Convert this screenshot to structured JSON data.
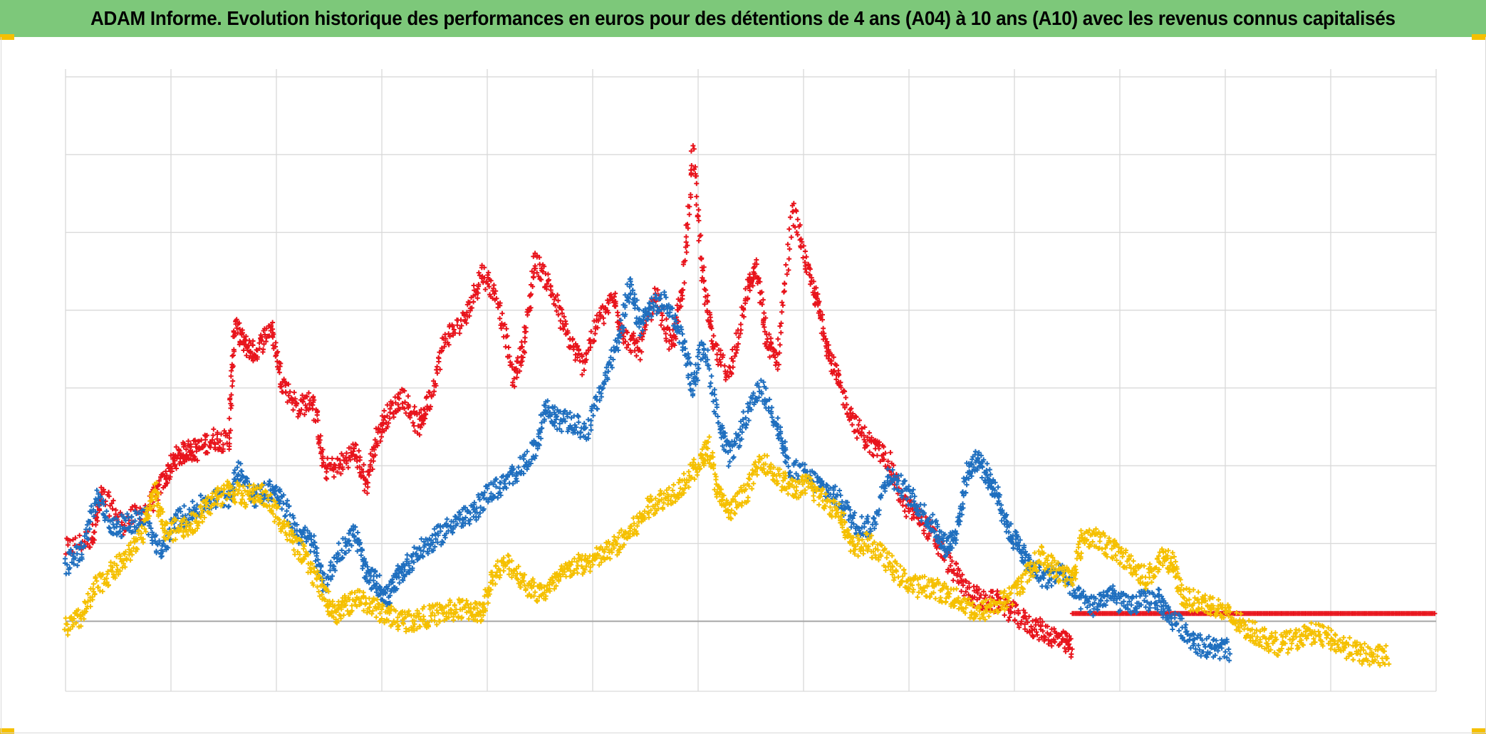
{
  "title": "ADAM Informe. Evolution historique des performances en euros pour des détentions de 4 ans (A04) à 10 ans (A10) avec les revenus connus capitalisés",
  "colors": {
    "title_bar": "#7dc87a",
    "grid": "#d9d9d9",
    "zero_line": "#a6a6a6",
    "series_red": "#e8141c",
    "series_blue": "#1f6fbf",
    "series_yellow": "#f5c000"
  },
  "chart_data": {
    "type": "scatter",
    "marker": "plus",
    "grid": true,
    "legend": "none",
    "xlim": [
      0,
      13
    ],
    "ylim": [
      -0.9,
      7.1
    ],
    "x_gridlines": [
      0,
      1,
      2,
      3,
      4,
      5,
      6,
      7,
      8,
      9,
      10,
      11,
      12,
      13
    ],
    "y_gridlines": [
      -0.9,
      0,
      1,
      2,
      3,
      4,
      5,
      6,
      7
    ],
    "series": [
      {
        "color": "#e8141c",
        "points": [
          [
            0,
            0.92
          ],
          [
            0.25,
            1.08
          ],
          [
            0.35,
            1.62
          ],
          [
            0.55,
            1.25
          ],
          [
            0.8,
            1.5
          ],
          [
            0.95,
            1.85
          ],
          [
            1.05,
            2.1
          ],
          [
            1.15,
            2.2
          ],
          [
            1.25,
            2.2
          ],
          [
            1.4,
            2.35
          ],
          [
            1.55,
            2.3
          ],
          [
            1.6,
            3.8
          ],
          [
            1.7,
            3.55
          ],
          [
            1.8,
            3.45
          ],
          [
            1.95,
            3.8
          ],
          [
            2.05,
            3.1
          ],
          [
            2.2,
            2.75
          ],
          [
            2.35,
            2.85
          ],
          [
            2.45,
            1.95
          ],
          [
            2.6,
            2.0
          ],
          [
            2.75,
            2.2
          ],
          [
            2.85,
            1.75
          ],
          [
            2.95,
            2.35
          ],
          [
            3.05,
            2.65
          ],
          [
            3.2,
            2.9
          ],
          [
            3.35,
            2.5
          ],
          [
            3.45,
            2.85
          ],
          [
            3.6,
            3.65
          ],
          [
            3.8,
            3.9
          ],
          [
            3.95,
            4.5
          ],
          [
            4.1,
            4.15
          ],
          [
            4.25,
            3.1
          ],
          [
            4.35,
            3.55
          ],
          [
            4.45,
            4.65
          ],
          [
            4.6,
            4.3
          ],
          [
            4.75,
            3.7
          ],
          [
            4.9,
            3.3
          ],
          [
            5.05,
            3.85
          ],
          [
            5.2,
            4.15
          ],
          [
            5.3,
            3.65
          ],
          [
            5.45,
            3.5
          ],
          [
            5.6,
            4.2
          ],
          [
            5.75,
            3.5
          ],
          [
            5.85,
            4.25
          ],
          [
            5.95,
            6.05
          ],
          [
            6.05,
            4.35
          ],
          [
            6.15,
            3.5
          ],
          [
            6.3,
            3.15
          ],
          [
            6.45,
            4.2
          ],
          [
            6.55,
            4.55
          ],
          [
            6.65,
            3.6
          ],
          [
            6.75,
            3.35
          ],
          [
            6.9,
            5.3
          ],
          [
            7.05,
            4.45
          ],
          [
            7.15,
            4.0
          ],
          [
            7.25,
            3.4
          ],
          [
            7.35,
            3.0
          ],
          [
            7.5,
            2.5
          ],
          [
            7.65,
            2.25
          ],
          [
            7.8,
            2.1
          ],
          [
            7.95,
            1.5
          ],
          [
            8.1,
            1.35
          ],
          [
            8.25,
            1.05
          ],
          [
            8.4,
            0.7
          ],
          [
            8.55,
            0.4
          ],
          [
            8.7,
            0.25
          ],
          [
            8.85,
            0.25
          ],
          [
            9.0,
            0.1
          ],
          [
            9.15,
            -0.05
          ],
          [
            9.3,
            -0.15
          ],
          [
            9.45,
            -0.25
          ],
          [
            9.55,
            -0.35
          ]
        ]
      },
      {
        "color": "#e8141c",
        "points": [
          [
            9.55,
            0.1
          ],
          [
            13.0,
            0.1
          ]
        ]
      },
      {
        "color": "#1f6fbf",
        "points": [
          [
            0,
            0.72
          ],
          [
            0.15,
            0.9
          ],
          [
            0.3,
            1.6
          ],
          [
            0.45,
            1.2
          ],
          [
            0.6,
            1.25
          ],
          [
            0.75,
            1.35
          ],
          [
            0.9,
            0.85
          ],
          [
            1.05,
            1.3
          ],
          [
            1.2,
            1.4
          ],
          [
            1.35,
            1.55
          ],
          [
            1.55,
            1.6
          ],
          [
            1.65,
            1.95
          ],
          [
            1.8,
            1.6
          ],
          [
            1.95,
            1.7
          ],
          [
            2.05,
            1.55
          ],
          [
            2.2,
            1.15
          ],
          [
            2.35,
            1.0
          ],
          [
            2.45,
            0.45
          ],
          [
            2.6,
            0.9
          ],
          [
            2.75,
            1.15
          ],
          [
            2.85,
            0.6
          ],
          [
            2.95,
            0.5
          ],
          [
            3.05,
            0.3
          ],
          [
            3.15,
            0.55
          ],
          [
            3.25,
            0.75
          ],
          [
            3.4,
            0.95
          ],
          [
            3.55,
            1.1
          ],
          [
            3.7,
            1.3
          ],
          [
            3.85,
            1.35
          ],
          [
            4.0,
            1.65
          ],
          [
            4.15,
            1.75
          ],
          [
            4.3,
            1.95
          ],
          [
            4.45,
            2.2
          ],
          [
            4.55,
            2.75
          ],
          [
            4.65,
            2.6
          ],
          [
            4.8,
            2.55
          ],
          [
            4.95,
            2.45
          ],
          [
            5.1,
            3.05
          ],
          [
            5.25,
            3.65
          ],
          [
            5.35,
            4.3
          ],
          [
            5.45,
            3.8
          ],
          [
            5.55,
            4.05
          ],
          [
            5.7,
            4.1
          ],
          [
            5.85,
            3.65
          ],
          [
            5.95,
            3.0
          ],
          [
            6.05,
            3.6
          ],
          [
            6.2,
            2.55
          ],
          [
            6.3,
            2.1
          ],
          [
            6.45,
            2.6
          ],
          [
            6.6,
            3.0
          ],
          [
            6.75,
            2.55
          ],
          [
            6.85,
            2.0
          ],
          [
            7.05,
            1.85
          ],
          [
            7.2,
            1.7
          ],
          [
            7.35,
            1.55
          ],
          [
            7.5,
            1.25
          ],
          [
            7.65,
            1.2
          ],
          [
            7.8,
            1.9
          ],
          [
            7.95,
            1.7
          ],
          [
            8.1,
            1.45
          ],
          [
            8.25,
            1.2
          ],
          [
            8.35,
            0.95
          ],
          [
            8.45,
            1.15
          ],
          [
            8.55,
            1.9
          ],
          [
            8.65,
            2.1
          ],
          [
            8.75,
            1.85
          ],
          [
            8.85,
            1.6
          ],
          [
            8.95,
            1.15
          ],
          [
            9.05,
            0.95
          ],
          [
            9.15,
            0.7
          ],
          [
            9.3,
            0.55
          ],
          [
            9.45,
            0.65
          ],
          [
            9.6,
            0.3
          ],
          [
            9.75,
            0.2
          ],
          [
            9.9,
            0.35
          ],
          [
            10.05,
            0.2
          ],
          [
            10.2,
            0.25
          ],
          [
            10.35,
            0.3
          ],
          [
            10.45,
            0.1
          ],
          [
            10.6,
            -0.1
          ],
          [
            10.75,
            -0.3
          ],
          [
            10.9,
            -0.35
          ],
          [
            11.05,
            -0.38
          ]
        ]
      },
      {
        "color": "#f5c000",
        "points": [
          [
            0,
            -0.1
          ],
          [
            0.15,
            0.05
          ],
          [
            0.3,
            0.45
          ],
          [
            0.45,
            0.65
          ],
          [
            0.6,
            0.85
          ],
          [
            0.75,
            1.2
          ],
          [
            0.85,
            1.7
          ],
          [
            0.95,
            1.15
          ],
          [
            1.1,
            1.2
          ],
          [
            1.25,
            1.3
          ],
          [
            1.4,
            1.55
          ],
          [
            1.55,
            1.7
          ],
          [
            1.7,
            1.6
          ],
          [
            1.85,
            1.65
          ],
          [
            2.0,
            1.4
          ],
          [
            2.15,
            1.05
          ],
          [
            2.3,
            0.75
          ],
          [
            2.45,
            0.35
          ],
          [
            2.55,
            0.1
          ],
          [
            2.65,
            0.2
          ],
          [
            2.8,
            0.3
          ],
          [
            2.95,
            0.15
          ],
          [
            3.1,
            0.05
          ],
          [
            3.25,
            0.0
          ],
          [
            3.4,
            0.05
          ],
          [
            3.55,
            0.1
          ],
          [
            3.7,
            0.15
          ],
          [
            3.85,
            0.15
          ],
          [
            3.95,
            0.1
          ],
          [
            4.05,
            0.6
          ],
          [
            4.2,
            0.75
          ],
          [
            4.35,
            0.5
          ],
          [
            4.5,
            0.35
          ],
          [
            4.65,
            0.5
          ],
          [
            4.8,
            0.7
          ],
          [
            4.95,
            0.75
          ],
          [
            5.1,
            0.85
          ],
          [
            5.25,
            1.0
          ],
          [
            5.4,
            1.2
          ],
          [
            5.55,
            1.5
          ],
          [
            5.7,
            1.6
          ],
          [
            5.85,
            1.75
          ],
          [
            6.0,
            2.0
          ],
          [
            6.1,
            2.25
          ],
          [
            6.2,
            1.6
          ],
          [
            6.3,
            1.4
          ],
          [
            6.45,
            1.65
          ],
          [
            6.6,
            2.1
          ],
          [
            6.75,
            1.85
          ],
          [
            6.9,
            1.7
          ],
          [
            7.05,
            1.75
          ],
          [
            7.2,
            1.55
          ],
          [
            7.35,
            1.4
          ],
          [
            7.45,
            0.95
          ],
          [
            7.6,
            1.0
          ],
          [
            7.75,
            0.85
          ],
          [
            7.9,
            0.6
          ],
          [
            8.05,
            0.45
          ],
          [
            8.2,
            0.45
          ],
          [
            8.35,
            0.35
          ],
          [
            8.5,
            0.25
          ],
          [
            8.65,
            0.1
          ],
          [
            8.8,
            0.2
          ],
          [
            8.95,
            0.3
          ],
          [
            9.1,
            0.55
          ],
          [
            9.25,
            0.85
          ],
          [
            9.4,
            0.65
          ],
          [
            9.55,
            0.55
          ],
          [
            9.65,
            1.1
          ],
          [
            9.8,
            1.05
          ],
          [
            9.95,
            0.9
          ],
          [
            10.1,
            0.75
          ],
          [
            10.25,
            0.55
          ],
          [
            10.4,
            0.8
          ],
          [
            10.5,
            0.75
          ],
          [
            10.6,
            0.3
          ],
          [
            10.75,
            0.25
          ],
          [
            10.9,
            0.2
          ],
          [
            11.05,
            0.05
          ],
          [
            11.2,
            -0.1
          ],
          [
            11.35,
            -0.2
          ],
          [
            11.5,
            -0.3
          ],
          [
            11.65,
            -0.25
          ],
          [
            11.8,
            -0.15
          ],
          [
            11.95,
            -0.2
          ],
          [
            12.1,
            -0.3
          ],
          [
            12.25,
            -0.4
          ],
          [
            12.4,
            -0.45
          ],
          [
            12.55,
            -0.45
          ]
        ]
      }
    ]
  }
}
